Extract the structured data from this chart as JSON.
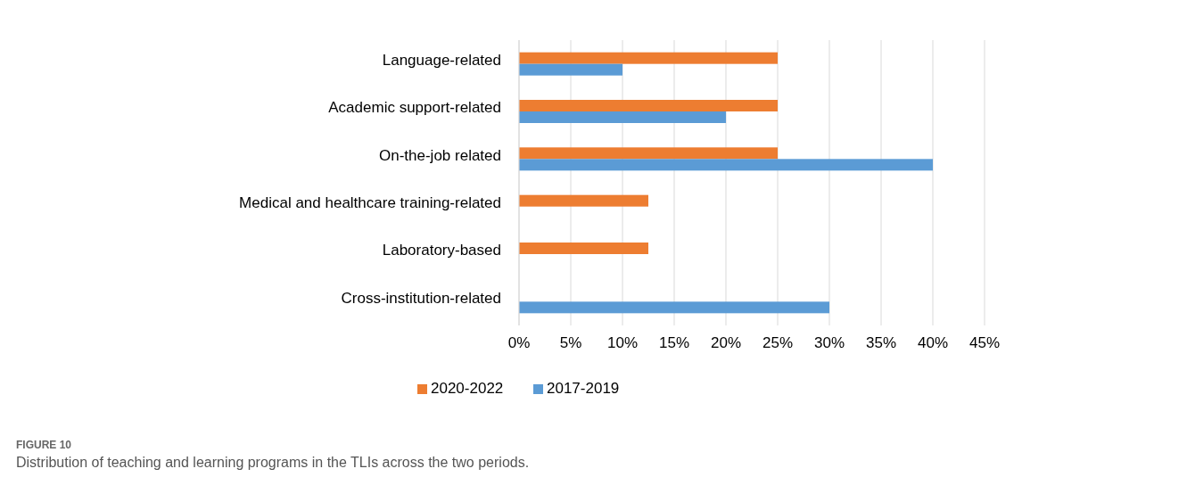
{
  "chart_data": {
    "type": "bar",
    "orientation": "horizontal",
    "categories": [
      "Language-related",
      "Academic support-related",
      "On-the-job related",
      "Medical and healthcare training-related",
      "Laboratory-based",
      "Cross-institution-related"
    ],
    "series": [
      {
        "name": "2020-2022",
        "color": "#ed7d31",
        "values": [
          25,
          25,
          25,
          12.5,
          12.5,
          0
        ]
      },
      {
        "name": "2017-2019",
        "color": "#5b9bd5",
        "values": [
          10,
          20,
          40,
          0,
          0,
          30
        ]
      }
    ],
    "xlim": [
      0,
      45
    ],
    "xticks": [
      {
        "value": 0,
        "label": "0%"
      },
      {
        "value": 5,
        "label": "5%"
      },
      {
        "value": 10,
        "label": "10%"
      },
      {
        "value": 15,
        "label": "15%"
      },
      {
        "value": 20,
        "label": "20%"
      },
      {
        "value": 25,
        "label": "25%"
      },
      {
        "value": 30,
        "label": "30%"
      },
      {
        "value": 35,
        "label": "35%"
      },
      {
        "value": 40,
        "label": "40%"
      },
      {
        "value": 45,
        "label": "45%"
      }
    ],
    "grid": "x",
    "legend": "bottom",
    "annotations": [
      "FIGURE 10",
      "Distribution of teaching and learning programs in the TLIs across the two periods."
    ]
  }
}
